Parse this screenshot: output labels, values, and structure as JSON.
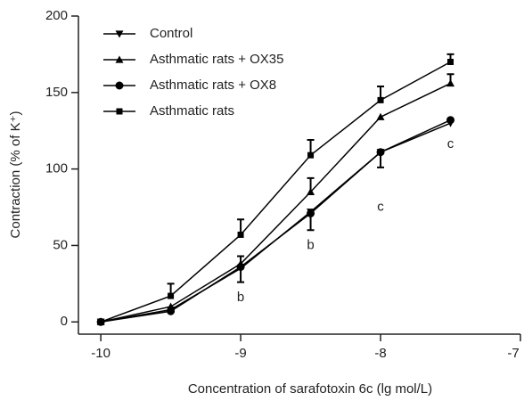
{
  "chart_data": {
    "type": "line",
    "x_label": "Concentration of sarafotoxin 6c (lg mol/L)",
    "y_label": "Contraction (% of K⁺)",
    "x": [
      -10,
      -9.5,
      -9,
      -8.5,
      -8,
      -7.5
    ],
    "xlim": [
      -10.16,
      -7
    ],
    "xticks": [
      -10,
      -9,
      -8,
      -7
    ],
    "ylim": [
      -8,
      200
    ],
    "yticks": [
      0,
      50,
      100,
      150,
      200
    ],
    "legend": "upper left",
    "series": [
      {
        "name": "Control",
        "color": "#000000",
        "marker": "triangle-down",
        "values": [
          0,
          8,
          35,
          72,
          111,
          130
        ],
        "errors": [
          0,
          0,
          9,
          12,
          10,
          0
        ],
        "error_direction": "down"
      },
      {
        "name": "Asthmatic rats + OX35",
        "color": "#000000",
        "marker": "triangle",
        "values": [
          0,
          10,
          38,
          85,
          134,
          156
        ],
        "errors": [
          0,
          0,
          5,
          9,
          0,
          6
        ],
        "error_direction": "up"
      },
      {
        "name": "Asthmatic rats + OX8",
        "color": "#000000",
        "marker": "circle",
        "values": [
          0,
          7,
          36,
          71,
          111,
          132
        ],
        "errors": [
          0,
          0,
          0,
          0,
          0,
          0
        ],
        "error_direction": "up"
      },
      {
        "name": "Asthmatic rats",
        "color": "#000000",
        "marker": "square",
        "values": [
          0,
          17,
          57,
          109,
          145,
          170
        ],
        "errors": [
          0,
          8,
          10,
          10,
          9,
          5
        ],
        "error_direction": "up"
      }
    ],
    "annotations": [
      {
        "text": "b",
        "x": -9,
        "y": 16
      },
      {
        "text": "b",
        "x": -8.5,
        "y": 50
      },
      {
        "text": "c",
        "x": -8,
        "y": 75
      },
      {
        "text": "c",
        "x": -7.5,
        "y": 116
      }
    ]
  }
}
